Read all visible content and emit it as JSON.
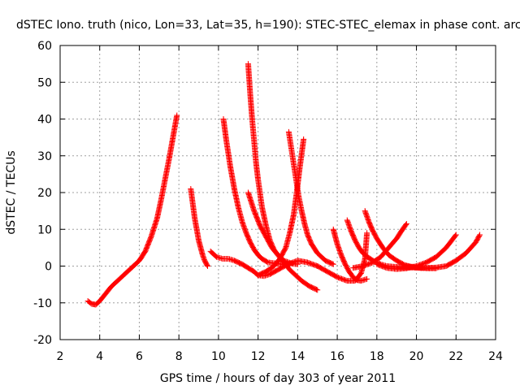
{
  "chart_data": {
    "type": "scatter",
    "title": "dSTEC Iono. truth (nico, Lon=33, Lat=35, h=190): STEC-STEC_elemax in phase cont. arc",
    "xlabel": "GPS time / hours of day 303 of year 2011",
    "ylabel": "dSTEC  / TECUs",
    "xlim": [
      2,
      24
    ],
    "ylim": [
      -20,
      60
    ],
    "xticks": [
      2,
      4,
      6,
      8,
      10,
      12,
      14,
      16,
      18,
      20,
      22,
      24
    ],
    "yticks": [
      -20,
      -10,
      0,
      10,
      20,
      30,
      40,
      50,
      60
    ],
    "grid": true,
    "marker": "+",
    "marker_color": "#ff0000",
    "series": [
      {
        "x": [
          3.4,
          3.6,
          3.8,
          4.0,
          4.3,
          4.6,
          5.0,
          5.5,
          6.0,
          6.3,
          6.6,
          6.9,
          7.1,
          7.3,
          7.5,
          7.7,
          7.9
        ],
        "y": [
          -9.5,
          -10.3,
          -10.5,
          -9.5,
          -7.5,
          -5.5,
          -3.5,
          -1.0,
          1.5,
          4.0,
          8.0,
          13.0,
          18.0,
          23.5,
          29.0,
          35.0,
          41.0
        ]
      },
      {
        "x": [
          8.6,
          8.7,
          8.8,
          8.9,
          9.0,
          9.1,
          9.2,
          9.3,
          9.45
        ],
        "y": [
          21.0,
          17.0,
          13.0,
          10.0,
          7.0,
          5.0,
          3.0,
          1.5,
          0.0
        ]
      },
      {
        "x": [
          9.6,
          9.9,
          10.2,
          10.5,
          10.8,
          11.2,
          11.5,
          11.8,
          12.0,
          12.3,
          12.6,
          13.0,
          13.5,
          14.0,
          14.5,
          15.0
        ],
        "y": [
          4.0,
          2.5,
          2.0,
          2.0,
          1.5,
          0.5,
          -0.5,
          -1.5,
          -2.5,
          -2.7,
          -2.2,
          -1.0,
          0.5,
          1.5,
          1.0,
          0.0
        ]
      },
      {
        "x": [
          10.25,
          10.4,
          10.6,
          10.8,
          11.0,
          11.2,
          11.4,
          11.6,
          11.8,
          12.0,
          12.2,
          12.5,
          12.8,
          13.2,
          13.6
        ],
        "y": [
          40.0,
          34.0,
          27.0,
          21.0,
          16.0,
          12.0,
          9.0,
          6.5,
          4.5,
          3.0,
          2.0,
          1.0,
          0.8,
          0.5,
          0.3
        ]
      },
      {
        "x": [
          11.5,
          11.6,
          11.7,
          11.8,
          11.9,
          12.0,
          12.2,
          12.4,
          12.6,
          12.8,
          13.0,
          13.3,
          13.7,
          14.0
        ],
        "y": [
          55.0,
          47.0,
          40.0,
          34.0,
          28.0,
          23.5,
          16.0,
          11.0,
          7.0,
          4.5,
          3.0,
          1.5,
          0.7,
          0.5
        ]
      },
      {
        "x": [
          11.5,
          11.8,
          12.1,
          12.4,
          12.7,
          13.0,
          13.3,
          13.6,
          13.9,
          14.2,
          14.6,
          15.0
        ],
        "y": [
          20.0,
          15.0,
          11.0,
          8.0,
          5.0,
          3.0,
          1.0,
          -1.0,
          -2.5,
          -4.0,
          -5.5,
          -6.5
        ]
      },
      {
        "x": [
          13.55,
          13.65,
          13.75,
          13.85,
          13.95,
          14.05,
          14.2,
          14.35,
          14.5,
          14.7,
          15.0,
          15.4,
          15.8
        ],
        "y": [
          36.5,
          33.0,
          29.5,
          26.0,
          22.5,
          19.0,
          15.0,
          11.5,
          8.5,
          6.0,
          3.5,
          1.5,
          0.5
        ]
      },
      {
        "x": [
          12.0,
          12.4,
          12.8,
          13.1,
          13.4,
          13.6,
          13.8,
          13.9,
          14.0,
          14.1,
          14.2,
          14.3
        ],
        "y": [
          -2.5,
          -1.5,
          0.0,
          2.0,
          5.0,
          9.0,
          14.0,
          18.0,
          22.0,
          26.5,
          30.5,
          34.5
        ]
      },
      {
        "x": [
          15.8,
          15.9,
          16.0,
          16.2,
          16.4,
          16.6,
          16.8,
          17.0,
          17.2,
          17.5
        ],
        "y": [
          10.0,
          8.0,
          6.0,
          3.0,
          0.5,
          -1.5,
          -3.0,
          -3.8,
          -4.0,
          -3.5
        ]
      },
      {
        "x": [
          16.5,
          16.7,
          16.9,
          17.1,
          17.3,
          17.6,
          17.9,
          18.2,
          18.5,
          18.9,
          19.3,
          19.8,
          20.3
        ],
        "y": [
          12.5,
          9.5,
          7.0,
          5.0,
          3.5,
          2.2,
          1.2,
          0.5,
          0.0,
          -0.2,
          -0.3,
          -0.4,
          -0.5
        ]
      },
      {
        "x": [
          17.4,
          17.6,
          17.8,
          18.0,
          18.3,
          18.6,
          19.0,
          19.4,
          19.8,
          20.2,
          20.6,
          21.0
        ],
        "y": [
          15.0,
          12.0,
          9.5,
          7.5,
          5.0,
          3.0,
          1.5,
          0.3,
          -0.3,
          -0.5,
          -0.6,
          -0.6
        ]
      },
      {
        "x": [
          15.0,
          15.5,
          16.0,
          16.5,
          16.9,
          17.2,
          17.4,
          17.5
        ],
        "y": [
          0.0,
          -1.5,
          -3.0,
          -4.0,
          -4.0,
          -2.0,
          2.0,
          9.0
        ]
      },
      {
        "x": [
          16.8,
          17.3,
          17.8,
          18.2,
          18.6,
          19.0,
          19.3,
          19.5
        ],
        "y": [
          -0.5,
          0.0,
          1.0,
          2.5,
          5.0,
          7.5,
          10.0,
          11.5
        ]
      },
      {
        "x": [
          18.0,
          18.5,
          19.0,
          19.5,
          20.0,
          20.5,
          21.0,
          21.5,
          22.0
        ],
        "y": [
          0.5,
          -0.5,
          -0.8,
          -0.6,
          0.0,
          1.0,
          2.5,
          5.0,
          8.5
        ]
      },
      {
        "x": [
          19.5,
          20.0,
          20.5,
          21.0,
          21.5,
          22.0,
          22.5,
          23.0,
          23.2
        ],
        "y": [
          0.0,
          -0.3,
          -0.5,
          -0.4,
          0.0,
          1.5,
          3.5,
          6.5,
          8.5
        ]
      }
    ]
  }
}
